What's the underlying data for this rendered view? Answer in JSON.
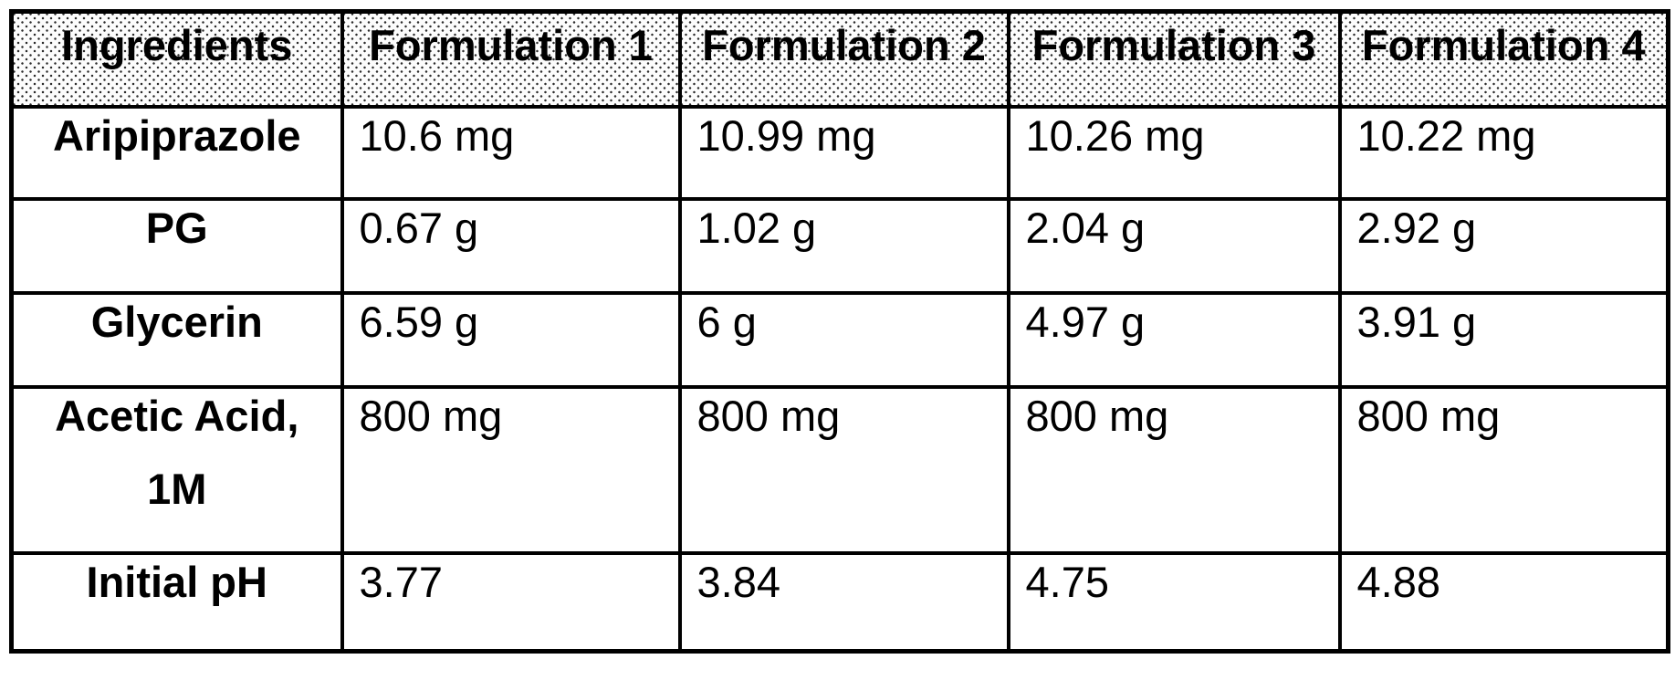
{
  "table": {
    "columns": [
      "Ingredients",
      "Formulation 1",
      "Formulation 2",
      "Formulation 3",
      "Formulation 4"
    ],
    "rows": [
      {
        "ingredient": "Aripiprazole",
        "values": [
          "10.6 mg",
          "10.99 mg",
          "10.26 mg",
          "10.22 mg"
        ]
      },
      {
        "ingredient": "PG",
        "values": [
          "0.67 g",
          "1.02 g",
          "2.04 g",
          "2.92 g"
        ]
      },
      {
        "ingredient": "Glycerin",
        "values": [
          "6.59 g",
          "6 g",
          "4.97 g",
          "3.91 g"
        ]
      },
      {
        "ingredient": "Acetic Acid,",
        "ingredient_line2": "1M",
        "values": [
          "800 mg",
          "800 mg",
          "800 mg",
          "800 mg"
        ]
      },
      {
        "ingredient": "Initial pH",
        "values": [
          "3.77",
          "3.84",
          "4.75",
          "4.88"
        ]
      }
    ],
    "colors": {
      "border": "#000000",
      "text": "#000000",
      "header_dot": "#2b2b2b",
      "background": "#ffffff"
    }
  }
}
